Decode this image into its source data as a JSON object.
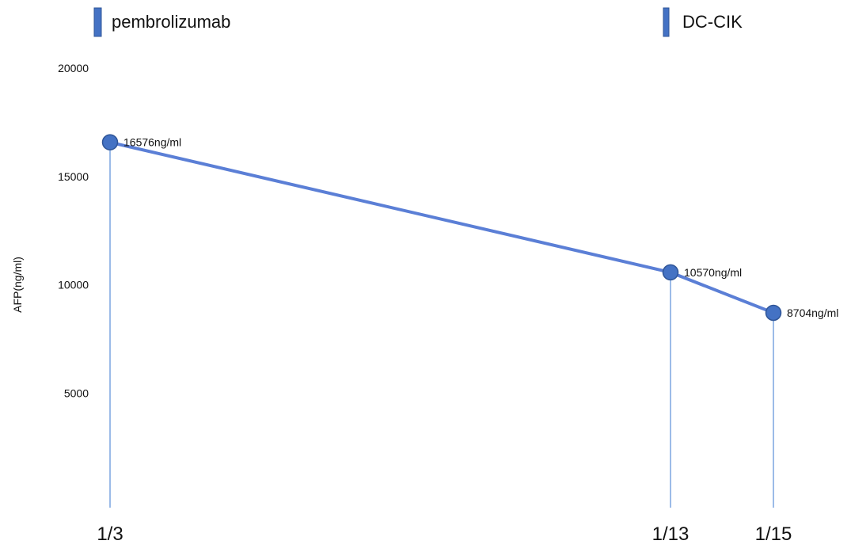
{
  "chart_data": {
    "type": "line",
    "title": "",
    "xlabel": "",
    "ylabel": "AFP(ng/ml)",
    "ylim": [
      0,
      20000
    ],
    "yticks": [
      5000,
      10000,
      15000,
      20000
    ],
    "grid": false,
    "categories": [
      "1/3",
      "1/13",
      "1/15"
    ],
    "series": [
      {
        "values": [
          16576,
          10570,
          8704
        ],
        "labels": [
          "16576ng/ml",
          "10570ng/ml",
          "8704ng/ml"
        ]
      }
    ],
    "legend": {
      "placement": "top",
      "items": [
        {
          "label": "pembrolizumab"
        },
        {
          "label": "DC-CIK"
        }
      ]
    },
    "colors": {
      "line": "#5b7fd6",
      "marker_fill": "#4472c4",
      "marker_stroke": "#2f5597",
      "drop_line": "#5b8ed8",
      "legend_fill": "#4472c4",
      "legend_stroke": "#2f5597"
    }
  }
}
